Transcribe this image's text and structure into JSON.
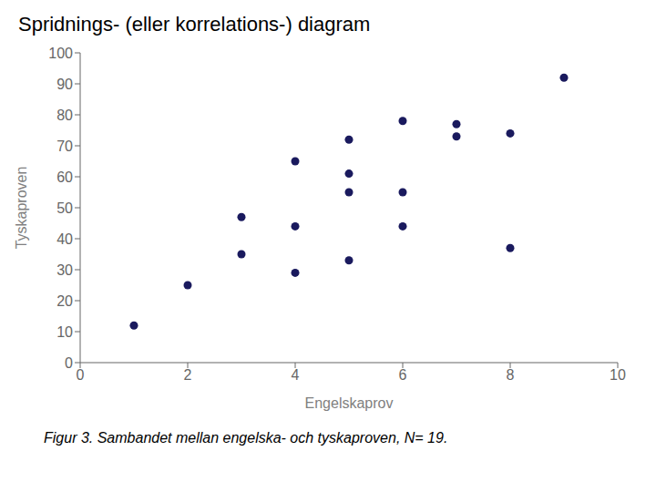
{
  "chart_data": {
    "type": "scatter",
    "title": "Spridnings- (eller korrelations-) diagram",
    "caption": "Figur 3. Sambandet mellan engelska- och tyskaproven, N= 19.",
    "xlabel": "Engelskaprov",
    "ylabel": "Tyskaproven",
    "x": [
      1,
      2,
      3,
      3,
      4,
      4,
      4,
      5,
      5,
      5,
      5,
      6,
      6,
      6,
      7,
      7,
      8,
      8,
      9
    ],
    "values": [
      12,
      25,
      47,
      35,
      65,
      44,
      29,
      72,
      61,
      55,
      33,
      55,
      44,
      78,
      77,
      73,
      74,
      37,
      92
    ],
    "color": "#1a1a5e",
    "xlim": [
      0,
      10
    ],
    "ylim": [
      0,
      100
    ],
    "xticks": [
      0,
      2,
      4,
      6,
      8,
      10
    ],
    "yticks": [
      0,
      10,
      20,
      30,
      40,
      50,
      60,
      70,
      80,
      90,
      100
    ],
    "grid": false
  }
}
